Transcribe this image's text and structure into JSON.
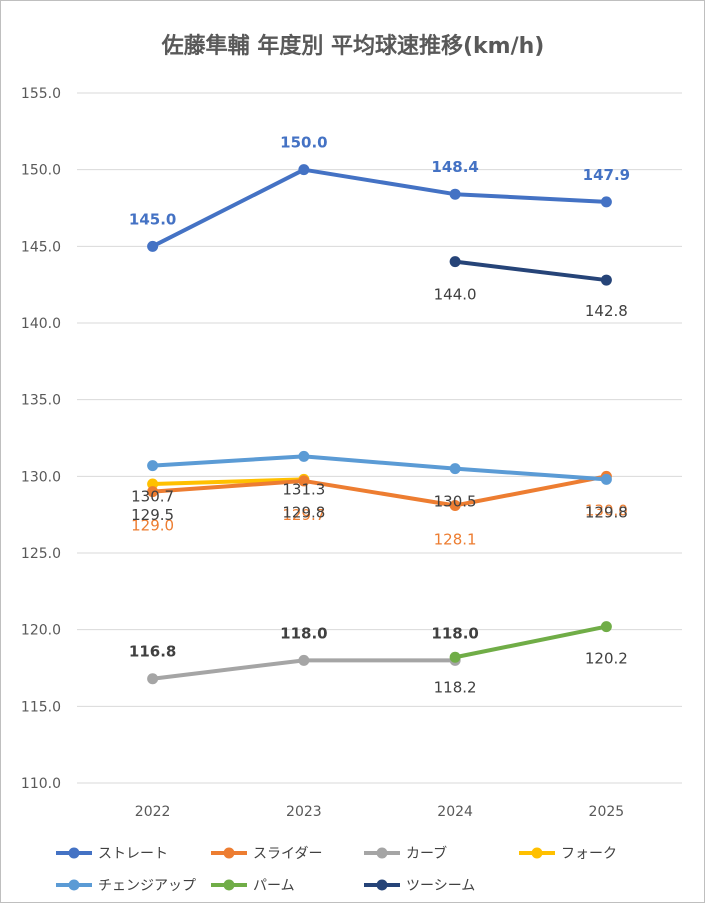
{
  "chart_data": {
    "type": "line",
    "title": "佐藤隼輔 年度別 平均球速推移(km/h)",
    "xlabel": "",
    "ylabel": "",
    "categories": [
      "2022",
      "2023",
      "2024",
      "2025"
    ],
    "ylim": [
      110.0,
      155.0
    ],
    "yticks": [
      "110.0",
      "115.0",
      "120.0",
      "125.0",
      "130.0",
      "135.0",
      "140.0",
      "145.0",
      "150.0",
      "155.0"
    ],
    "grid": true,
    "legend": "bottom",
    "series": [
      {
        "name": "ストレート",
        "color": "#4472c4",
        "values": [
          145.0,
          150.0,
          148.4,
          147.9
        ],
        "labels": [
          "145.0",
          "150.0",
          "148.4",
          "147.9"
        ]
      },
      {
        "name": "スライダー",
        "color": "#ed7d31",
        "values": [
          129.0,
          129.7,
          128.1,
          130.0
        ],
        "labels": [
          "129.0",
          "129.7",
          "128.1",
          "130.0"
        ]
      },
      {
        "name": "カーブ",
        "color": "#a5a5a5",
        "values": [
          116.8,
          118.0,
          118.0,
          null
        ],
        "labels": [
          "116.8",
          "118.0",
          "118.0",
          ""
        ]
      },
      {
        "name": "フォーク",
        "color": "#ffc000",
        "values": [
          129.5,
          129.8,
          null,
          null
        ],
        "labels": [
          "129.5",
          "129.8",
          "",
          ""
        ]
      },
      {
        "name": "チェンジアップ",
        "color": "#5b9bd5",
        "values": [
          130.7,
          131.3,
          130.5,
          129.8
        ],
        "labels": [
          "130.7",
          "131.3",
          "130.5",
          "129.8"
        ]
      },
      {
        "name": "パーム",
        "color": "#70ad47",
        "values": [
          null,
          null,
          118.2,
          120.2
        ],
        "labels": [
          "",
          "",
          "118.2",
          "120.2"
        ]
      },
      {
        "name": "ツーシーム",
        "color": "#264478",
        "values": [
          null,
          null,
          144.0,
          142.8
        ],
        "labels": [
          "",
          "",
          "144.0",
          "142.8"
        ]
      }
    ]
  }
}
